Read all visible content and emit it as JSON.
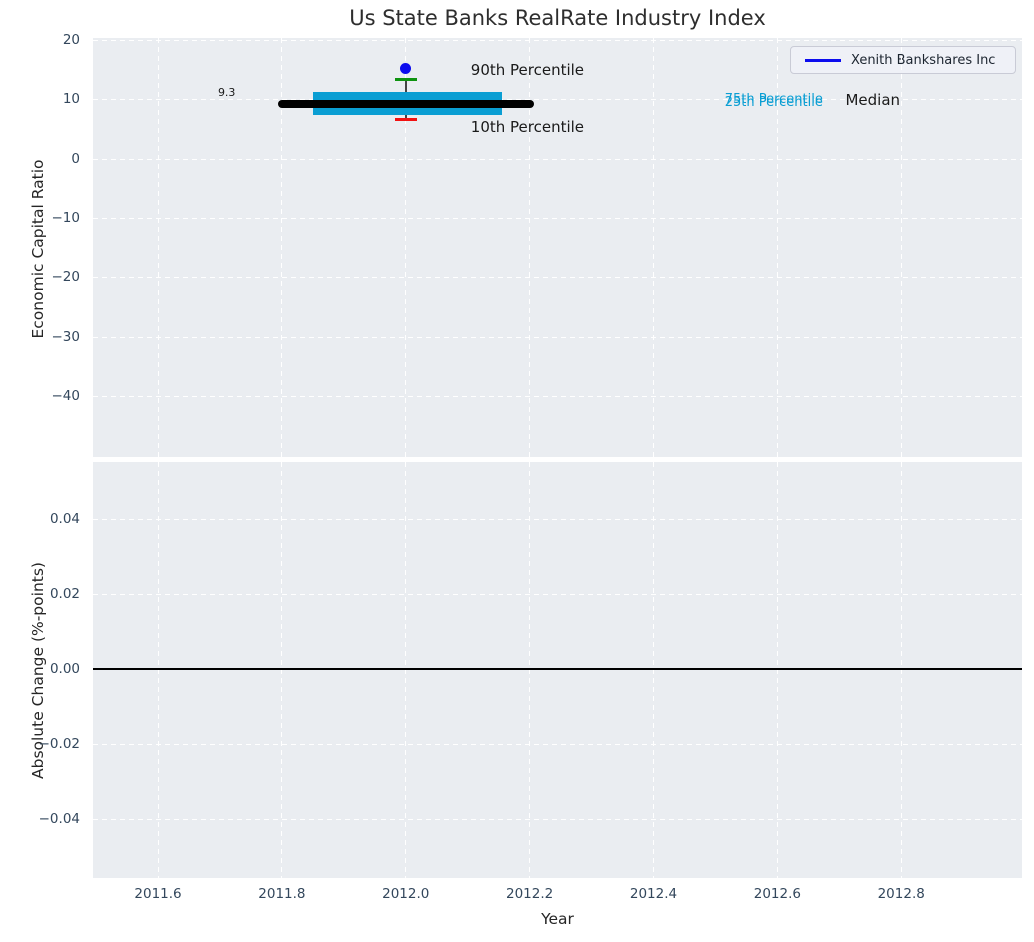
{
  "title": "Us State Banks RealRate Industry Index",
  "legend": {
    "label": "Xenith Bankshares Inc",
    "line_color": "#0c0cee"
  },
  "colors": {
    "axes_bg": "#eaedf1",
    "grid": "#ffffff",
    "box_fill": "#0a9ed3",
    "median_line": "#000000",
    "whisker": "#444444",
    "cap_90th": "#0e9310",
    "cap_10th": "#f21111",
    "company_point": "#0c0cee",
    "tick_text": "#33475c",
    "annotation_text": "#1a1a1a",
    "percentile_label_text": "#0a9ed3"
  },
  "chart_data": {
    "type": "boxplot",
    "title": "Us State Banks RealRate Industry Index",
    "xlabel": "Year",
    "grid": "dashed-white-on-gray",
    "legend_position": "upper right",
    "x_range": [
      2011.495,
      2012.995
    ],
    "x_ticks": [
      2011.6,
      2011.8,
      2012.0,
      2012.2,
      2012.4,
      2012.6,
      2012.8
    ],
    "x_tick_labels": [
      "2011.6",
      "2011.8",
      "2012.0",
      "2012.2",
      "2012.4",
      "2012.6",
      "2012.8"
    ],
    "panels": [
      {
        "ylabel": "Economic Capital Ratio",
        "y_range": [
          -50.1,
          20.35
        ],
        "y_ticks": [
          20,
          10,
          0,
          -10,
          -20,
          -30,
          -40
        ],
        "y_tick_labels": [
          "20",
          "10",
          "0",
          "−10",
          "−20",
          "−30",
          "−40"
        ],
        "box": {
          "x": 2012.0,
          "median": 9.3,
          "q1": 7.4,
          "q3": 11.3,
          "p10": 6.7,
          "p90": 13.3,
          "median_x_span": [
            2011.8,
            2012.2
          ],
          "box_x_span": [
            2011.85,
            2012.155
          ],
          "cap_half_width": 0.018
        },
        "company_point": {
          "series": "Xenith Bankshares Inc",
          "x": 2012.0,
          "y": 15.3
        },
        "annotations": [
          {
            "text": "9.3",
            "x": 2011.725,
            "y": 11.0,
            "align": "right",
            "color": "#1a1a1a",
            "size": 11
          },
          {
            "text": "90th Percentile",
            "x": 2012.105,
            "y": 14.6,
            "align": "left",
            "color": "#1a1a1a",
            "size": 15
          },
          {
            "text": "10th Percentile",
            "x": 2012.105,
            "y": 5.0,
            "align": "left",
            "color": "#1a1a1a",
            "size": 15
          },
          {
            "text": "75th Percentile",
            "x": 2012.515,
            "y": 9.8,
            "align": "left",
            "color": "#0a9ed3",
            "size": 13
          },
          {
            "text": "25th Percentile",
            "x": 2012.515,
            "y": 9.2,
            "align": "left",
            "color": "#0a9ed3",
            "size": 13
          },
          {
            "text": "Median",
            "x": 2012.71,
            "y": 9.5,
            "align": "left",
            "color": "#1a1a1a",
            "size": 15
          }
        ]
      },
      {
        "ylabel": "Absolute Change (%-points)",
        "y_range": [
          -0.0555,
          0.0552
        ],
        "y_ticks": [
          0.04,
          0.02,
          0.0,
          -0.02,
          -0.04
        ],
        "y_tick_labels": [
          "0.04",
          "0.02",
          "0.00",
          "−0.02",
          "−0.04"
        ],
        "zero_line_y": 0.0
      }
    ]
  }
}
